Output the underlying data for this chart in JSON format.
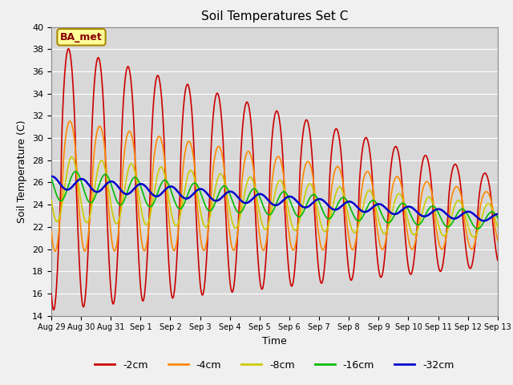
{
  "title": "Soil Temperatures Set C",
  "xlabel": "Time",
  "ylabel": "Soil Temperature (C)",
  "ylim": [
    14,
    40
  ],
  "background_color": "#f0f0f0",
  "plot_bg_color": "#d8d8d8",
  "grid_color": "#ffffff",
  "annotation_text": "BA_met",
  "annotation_bg": "#ffff99",
  "annotation_border": "#aa8800",
  "legend_labels": [
    "-2cm",
    "-4cm",
    "-8cm",
    "-16cm",
    "-32cm"
  ],
  "line_colors": [
    "#cc0000",
    "#ff8800",
    "#cccc00",
    "#00bb00",
    "#0000cc"
  ],
  "line_widths": [
    1.2,
    1.2,
    1.2,
    1.2,
    1.8
  ],
  "tick_labels": [
    "Aug 29",
    "Aug 30",
    "Aug 31",
    "Sep 1",
    "Sep 2",
    "Sep 3",
    "Sep 4",
    "Sep 5",
    "Sep 6",
    "Sep 7",
    "Sep 8",
    "Sep 9",
    "Sep 10",
    "Sep 11",
    "Sep 12",
    "Sep 13"
  ],
  "tick_positions": [
    0,
    1,
    2,
    3,
    4,
    5,
    6,
    7,
    8,
    9,
    10,
    11,
    12,
    13,
    14,
    15
  ]
}
